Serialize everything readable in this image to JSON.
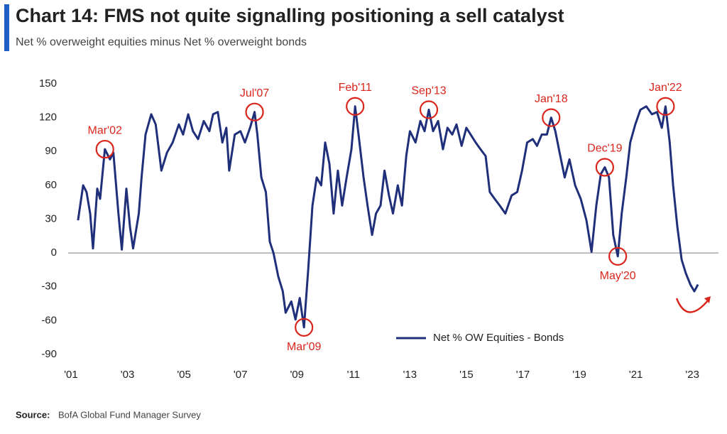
{
  "chart_data": {
    "type": "line",
    "title": "Chart 14: FMS not quite signalling positioning a sell catalyst",
    "subtitle": "Net % overweight equities minus Net % overweight bonds",
    "source_label": "Source:",
    "source": "BofA Global Fund Manager Survey",
    "x": [
      2001.25,
      2001.43,
      2001.55,
      2001.68,
      2001.78,
      2001.93,
      2002.03,
      2002.2,
      2002.38,
      2002.5,
      2002.68,
      2002.8,
      2002.96,
      2003.09,
      2003.2,
      2003.4,
      2003.5,
      2003.64,
      2003.84,
      2004.0,
      2004.2,
      2004.4,
      2004.6,
      2004.82,
      2004.97,
      2005.15,
      2005.32,
      2005.5,
      2005.7,
      2005.9,
      2006.03,
      2006.2,
      2006.36,
      2006.5,
      2006.6,
      2006.8,
      2007.0,
      2007.16,
      2007.34,
      2007.5,
      2007.6,
      2007.74,
      2007.9,
      2008.04,
      2008.17,
      2008.34,
      2008.5,
      2008.6,
      2008.8,
      2008.95,
      2009.1,
      2009.25,
      2009.4,
      2009.55,
      2009.7,
      2009.86,
      2010.0,
      2010.15,
      2010.3,
      2010.45,
      2010.6,
      2010.76,
      2010.93,
      2011.06,
      2011.18,
      2011.36,
      2011.5,
      2011.66,
      2011.8,
      2011.96,
      2012.1,
      2012.26,
      2012.4,
      2012.57,
      2012.72,
      2012.87,
      2013.0,
      2013.2,
      2013.37,
      2013.52,
      2013.67,
      2013.82,
      2014.0,
      2014.17,
      2014.33,
      2014.5,
      2014.65,
      2014.83,
      2015.0,
      2015.15,
      2015.33,
      2015.5,
      2015.68,
      2015.83,
      2016.0,
      2016.18,
      2016.38,
      2016.6,
      2016.8,
      2016.97,
      2017.15,
      2017.35,
      2017.5,
      2017.67,
      2017.85,
      2018.0,
      2018.15,
      2018.3,
      2018.48,
      2018.65,
      2018.85,
      2019.05,
      2019.25,
      2019.43,
      2019.6,
      2019.76,
      2019.9,
      2020.05,
      2020.2,
      2020.36,
      2020.5,
      2020.66,
      2020.8,
      2020.98,
      2021.16,
      2021.37,
      2021.57,
      2021.75,
      2021.92,
      2022.05,
      2022.2,
      2022.32,
      2022.47,
      2022.62,
      2022.77,
      2022.93,
      2023.07,
      2023.2
    ],
    "series": [
      {
        "name": "Net % OW Equities - Bonds",
        "color": "#1f2f7a",
        "values": [
          29,
          60,
          54,
          35,
          4,
          57,
          48,
          92,
          83,
          89,
          35,
          3,
          57,
          23,
          4,
          35,
          67,
          105,
          123,
          114,
          73,
          89,
          98,
          114,
          105,
          123,
          108,
          101,
          117,
          108,
          123,
          125,
          98,
          111,
          73,
          105,
          108,
          98,
          111,
          125,
          105,
          67,
          54,
          10,
          0,
          -21,
          -34,
          -53,
          -43,
          -59,
          -40,
          -66,
          -15,
          42,
          67,
          60,
          98,
          79,
          35,
          73,
          42,
          67,
          92,
          130,
          105,
          67,
          42,
          16,
          35,
          42,
          73,
          51,
          35,
          60,
          42,
          86,
          108,
          98,
          117,
          108,
          127,
          108,
          117,
          92,
          111,
          105,
          114,
          95,
          111,
          105,
          98,
          92,
          86,
          54,
          48,
          42,
          35,
          51,
          54,
          73,
          98,
          101,
          95,
          105,
          105,
          120,
          108,
          89,
          67,
          83,
          60,
          48,
          29,
          1,
          42,
          70,
          76,
          67,
          16,
          -3,
          35,
          67,
          98,
          114,
          127,
          130,
          123,
          125,
          111,
          130,
          98,
          60,
          23,
          -6,
          -18,
          -28,
          -34,
          -28
        ]
      }
    ],
    "xlim": [
      2000.9,
      2023.8
    ],
    "ylim": [
      -90,
      150
    ],
    "yticks": [
      -90,
      -60,
      -30,
      0,
      30,
      60,
      90,
      120,
      150
    ],
    "xticks": [
      {
        "value": 2001,
        "label": "'01"
      },
      {
        "value": 2003,
        "label": "'03"
      },
      {
        "value": 2005,
        "label": "'05"
      },
      {
        "value": 2007,
        "label": "'07"
      },
      {
        "value": 2009,
        "label": "'09"
      },
      {
        "value": 2011,
        "label": "'11"
      },
      {
        "value": 2013,
        "label": "'13"
      },
      {
        "value": 2015,
        "label": "'15"
      },
      {
        "value": 2017,
        "label": "'17"
      },
      {
        "value": 2019,
        "label": "'19"
      },
      {
        "value": 2021,
        "label": "'21"
      },
      {
        "value": 2023,
        "label": "'23"
      }
    ],
    "annotations": [
      {
        "text": "Mar'02",
        "x": 2002.2,
        "y": 92
      },
      {
        "text": "Jul'07",
        "x": 2007.5,
        "y": 125
      },
      {
        "text": "Mar'09",
        "x": 2009.25,
        "y": -66
      },
      {
        "text": "Feb'11",
        "x": 2011.06,
        "y": 130
      },
      {
        "text": "Sep'13",
        "x": 2013.67,
        "y": 127
      },
      {
        "text": "Jan'18",
        "x": 2018.0,
        "y": 120
      },
      {
        "text": "Dec'19",
        "x": 2019.9,
        "y": 76
      },
      {
        "text": "May'20",
        "x": 2020.36,
        "y": -3
      },
      {
        "text": "Jan'22",
        "x": 2022.05,
        "y": 130
      }
    ],
    "legend": "lower right",
    "annotation_color": "#d9261c"
  }
}
